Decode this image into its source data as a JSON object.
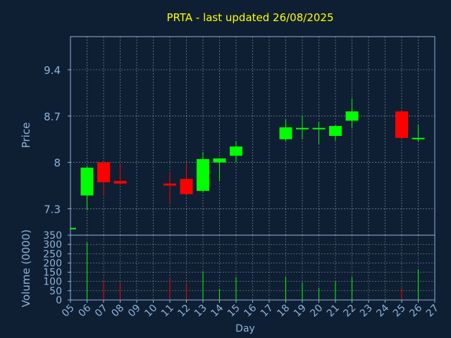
{
  "chart_data": {
    "title": "PRTA - last updated 26/08/2025",
    "colors": {
      "background": "#0f1f33",
      "title": "#ffff00",
      "axis": "#8fb3d9",
      "grid": "#ffffff",
      "up": "#00ff00",
      "down": "#ff0000"
    },
    "price_panel": {
      "type": "candlestick",
      "ylabel": "Price",
      "ylim": [
        6.9,
        9.9
      ],
      "yticks": [
        "7.3",
        "8",
        "8.7",
        "9.4"
      ],
      "candles": [
        {
          "day": "05",
          "open": 7.0,
          "high": 7.0,
          "low": 7.0,
          "close": 7.0
        },
        {
          "day": "06",
          "open": 7.5,
          "high": 7.95,
          "low": 7.28,
          "close": 7.92
        },
        {
          "day": "07",
          "open": 8.0,
          "high": 8.0,
          "low": 7.5,
          "close": 7.7
        },
        {
          "day": "08",
          "open": 7.72,
          "high": 7.98,
          "low": 7.66,
          "close": 7.68
        },
        {
          "day": "11",
          "open": 7.68,
          "high": 7.85,
          "low": 7.38,
          "close": 7.65
        },
        {
          "day": "12",
          "open": 7.75,
          "high": 7.97,
          "low": 7.5,
          "close": 7.52
        },
        {
          "day": "13",
          "open": 7.57,
          "high": 8.16,
          "low": 7.55,
          "close": 8.05
        },
        {
          "day": "14",
          "open": 8.0,
          "high": 8.06,
          "low": 7.72,
          "close": 8.06
        },
        {
          "day": "15",
          "open": 8.1,
          "high": 8.32,
          "low": 8.0,
          "close": 8.24
        },
        {
          "day": "18",
          "open": 8.35,
          "high": 8.65,
          "low": 8.32,
          "close": 8.53
        },
        {
          "day": "19",
          "open": 8.49,
          "high": 8.71,
          "low": 8.35,
          "close": 8.51
        },
        {
          "day": "20",
          "open": 8.49,
          "high": 8.61,
          "low": 8.28,
          "close": 8.51
        },
        {
          "day": "21",
          "open": 8.4,
          "high": 8.56,
          "low": 8.33,
          "close": 8.55
        },
        {
          "day": "22",
          "open": 8.63,
          "high": 8.97,
          "low": 8.52,
          "close": 8.77
        },
        {
          "day": "25",
          "open": 8.77,
          "high": 8.79,
          "low": 8.36,
          "close": 8.37
        },
        {
          "day": "26",
          "open": 8.35,
          "high": 8.57,
          "low": 8.31,
          "close": 8.36
        }
      ]
    },
    "volume_panel": {
      "type": "bar",
      "ylabel": "Volume (0000)",
      "ylim": [
        0,
        350
      ],
      "yticks": [
        "0",
        "50",
        "100",
        "150",
        "200",
        "250",
        "300",
        "350"
      ],
      "bars": [
        {
          "day": "06",
          "value": 310
        },
        {
          "day": "07",
          "value": 100
        },
        {
          "day": "08",
          "value": 95
        },
        {
          "day": "11",
          "value": 120
        },
        {
          "day": "12",
          "value": 90
        },
        {
          "day": "13",
          "value": 155
        },
        {
          "day": "14",
          "value": 60
        },
        {
          "day": "15",
          "value": 125
        },
        {
          "day": "18",
          "value": 125
        },
        {
          "day": "19",
          "value": 95
        },
        {
          "day": "20",
          "value": 65
        },
        {
          "day": "21",
          "value": 100
        },
        {
          "day": "22",
          "value": 125
        },
        {
          "day": "25",
          "value": 65
        },
        {
          "day": "26",
          "value": 165
        }
      ]
    },
    "xaxis": {
      "xlabel": "Day",
      "ticks": [
        "05",
        "06",
        "07",
        "08",
        "09",
        "10",
        "11",
        "12",
        "13",
        "14",
        "15",
        "16",
        "17",
        "18",
        "19",
        "20",
        "21",
        "22",
        "23",
        "24",
        "25",
        "26",
        "27"
      ]
    }
  }
}
